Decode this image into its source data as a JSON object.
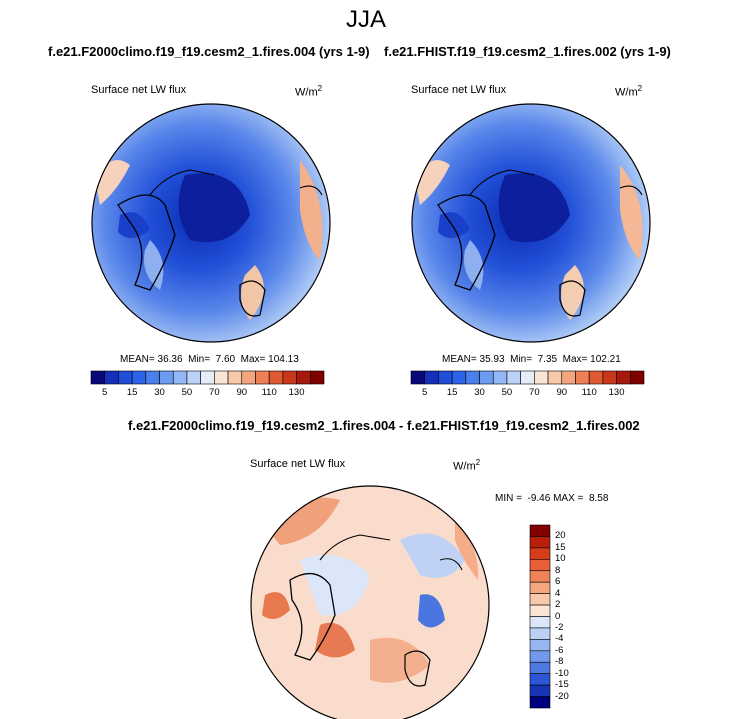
{
  "title": "JJA",
  "panels": [
    {
      "title": "f.e21.F2000climo.f19_f19.cesm2_1.fires.004 (yrs 1-9)",
      "variable": "Surface net LW flux",
      "units_base": "W/m",
      "units_exp": "2",
      "mean_label": "MEAN=",
      "mean": "36.36",
      "min_label": "Min=",
      "min": "7.60",
      "max_label": "Max=",
      "max": "104.13"
    },
    {
      "title": "f.e21.FHIST.f19_f19.cesm2_1.fires.002 (yrs 1-9)",
      "variable": "Surface net LW flux",
      "units_base": "W/m",
      "units_exp": "2",
      "mean_label": "MEAN=",
      "mean": "35.93",
      "min_label": "Min=",
      "min": "7.35",
      "max_label": "Max=",
      "max": "102.21"
    }
  ],
  "diff": {
    "title": "f.e21.F2000climo.f19_f19.cesm2_1.fires.004 - f.e21.FHIST.f19_f19.cesm2_1.fires.002",
    "variable": "Surface net LW flux",
    "units_base": "W/m",
    "units_exp": "2",
    "min_label": "MIN =",
    "min": "-9.46",
    "max_label": "MAX =",
    "max": "8.58"
  },
  "colorbar_main": {
    "colors": [
      "#08087a",
      "#1530b8",
      "#1f4fd8",
      "#2b64e6",
      "#4c7fee",
      "#6e9bf2",
      "#94b8f5",
      "#bcd3f7",
      "#e4eef9",
      "#fbe4d6",
      "#f8c8aa",
      "#f3a67e",
      "#ec8055",
      "#df5a34",
      "#c9371a",
      "#a8180c",
      "#800000"
    ],
    "ticks": [
      "5",
      "15",
      "30",
      "50",
      "70",
      "90",
      "110",
      "130"
    ]
  },
  "colorbar_diff": {
    "colors": [
      "#800000",
      "#b8200d",
      "#d73b1a",
      "#e85e36",
      "#f08358",
      "#f5a880",
      "#f8c9a8",
      "#fce6d3",
      "#dce8fa",
      "#bad0f5",
      "#97b6ef",
      "#7198ea",
      "#4e79e0",
      "#2c56d4",
      "#1634b4",
      "#00007e"
    ],
    "ticks": [
      "20",
      "15",
      "10",
      "8",
      "6",
      "4",
      "2",
      "0",
      "-2",
      "-4",
      "-6",
      "-8",
      "-10",
      "-15",
      "-20"
    ]
  }
}
